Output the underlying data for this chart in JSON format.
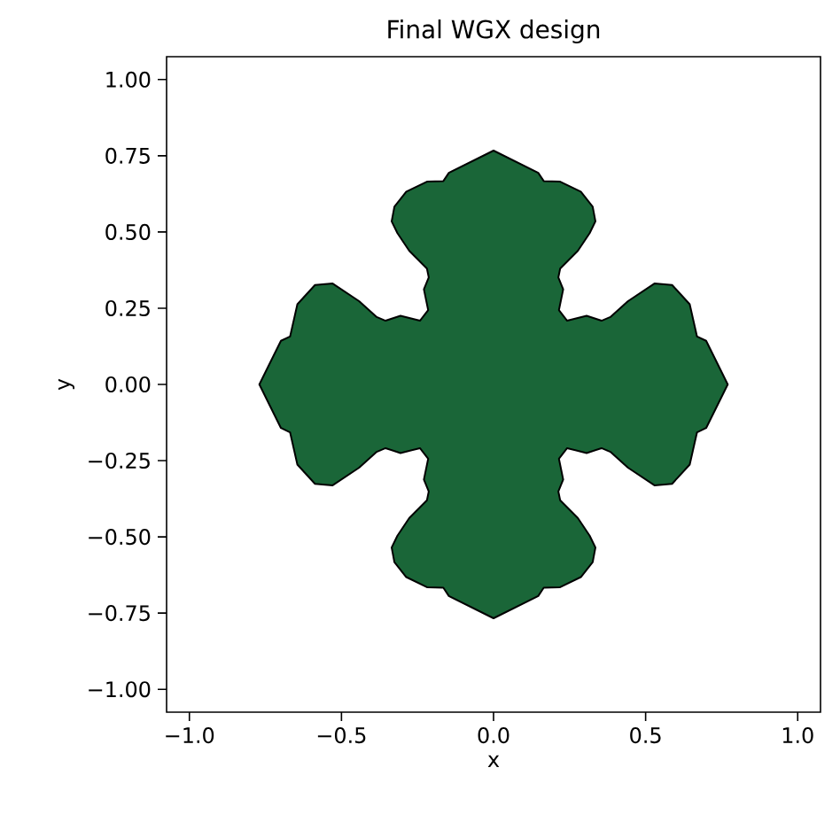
{
  "chart_data": {
    "type": "area",
    "title": "Final WGX design",
    "xlabel": "x",
    "ylabel": "y",
    "xlim": [
      -1.075,
      1.075
    ],
    "ylim": [
      -1.075,
      1.075
    ],
    "xticks": [
      {
        "value": -1.0,
        "label": "−1.0"
      },
      {
        "value": -0.5,
        "label": "−0.5"
      },
      {
        "value": 0.0,
        "label": "0.0"
      },
      {
        "value": 0.5,
        "label": "0.5"
      },
      {
        "value": 1.0,
        "label": "1.0"
      }
    ],
    "yticks": [
      {
        "value": -1.0,
        "label": "−1.00"
      },
      {
        "value": -0.75,
        "label": "−0.75"
      },
      {
        "value": -0.5,
        "label": "−0.50"
      },
      {
        "value": -0.25,
        "label": "−0.25"
      },
      {
        "value": 0.0,
        "label": "0.00"
      },
      {
        "value": 0.25,
        "label": "0.25"
      },
      {
        "value": 0.5,
        "label": "0.50"
      },
      {
        "value": 0.75,
        "label": "0.75"
      },
      {
        "value": 1.0,
        "label": "1.00"
      }
    ],
    "series": [
      {
        "color": "#1a6638",
        "x": [
          0,
          0.147,
          0.165,
          0.219,
          0.287,
          0.326,
          0.335,
          0.316,
          0.277,
          0.219,
          0.213,
          0.229,
          0.215,
          0.242,
          0.306,
          0.355,
          0.384,
          0.442,
          0.529,
          0.587,
          0.645,
          0.669,
          0.699,
          0.77,
          0.699,
          0.669,
          0.645,
          0.587,
          0.529,
          0.442,
          0.384,
          0.355,
          0.306,
          0.242,
          0.215,
          0.229,
          0.213,
          0.219,
          0.277,
          0.316,
          0.335,
          0.326,
          0.287,
          0.219,
          0.165,
          0.147,
          0,
          -0.147,
          -0.165,
          -0.219,
          -0.287,
          -0.326,
          -0.335,
          -0.316,
          -0.277,
          -0.219,
          -0.213,
          -0.229,
          -0.215,
          -0.242,
          -0.306,
          -0.355,
          -0.384,
          -0.442,
          -0.529,
          -0.587,
          -0.645,
          -0.669,
          -0.699,
          -0.77,
          -0.699,
          -0.669,
          -0.645,
          -0.587,
          -0.529,
          -0.442,
          -0.384,
          -0.355,
          -0.306,
          -0.242,
          -0.215,
          -0.229,
          -0.213,
          -0.219,
          -0.277,
          -0.316,
          -0.335,
          -0.326,
          -0.287,
          -0.219,
          -0.165,
          -0.147
        ],
        "values": [
          0.767,
          0.694,
          0.667,
          0.665,
          0.632,
          0.583,
          0.535,
          0.496,
          0.438,
          0.38,
          0.351,
          0.312,
          0.244,
          0.209,
          0.225,
          0.209,
          0.221,
          0.273,
          0.331,
          0.326,
          0.263,
          0.157,
          0.143,
          0,
          -0.143,
          -0.157,
          -0.263,
          -0.326,
          -0.331,
          -0.273,
          -0.221,
          -0.209,
          -0.225,
          -0.209,
          -0.244,
          -0.312,
          -0.351,
          -0.38,
          -0.438,
          -0.496,
          -0.535,
          -0.583,
          -0.632,
          -0.665,
          -0.667,
          -0.694,
          -0.767,
          -0.694,
          -0.667,
          -0.665,
          -0.632,
          -0.583,
          -0.535,
          -0.496,
          -0.438,
          -0.38,
          -0.351,
          -0.312,
          -0.244,
          -0.209,
          -0.225,
          -0.209,
          -0.221,
          -0.273,
          -0.331,
          -0.326,
          -0.263,
          -0.157,
          -0.143,
          0,
          0.143,
          0.157,
          0.263,
          0.326,
          0.331,
          0.273,
          0.221,
          0.209,
          0.225,
          0.209,
          0.244,
          0.312,
          0.351,
          0.38,
          0.438,
          0.496,
          0.535,
          0.583,
          0.632,
          0.665,
          0.667,
          0.694
        ]
      }
    ]
  }
}
